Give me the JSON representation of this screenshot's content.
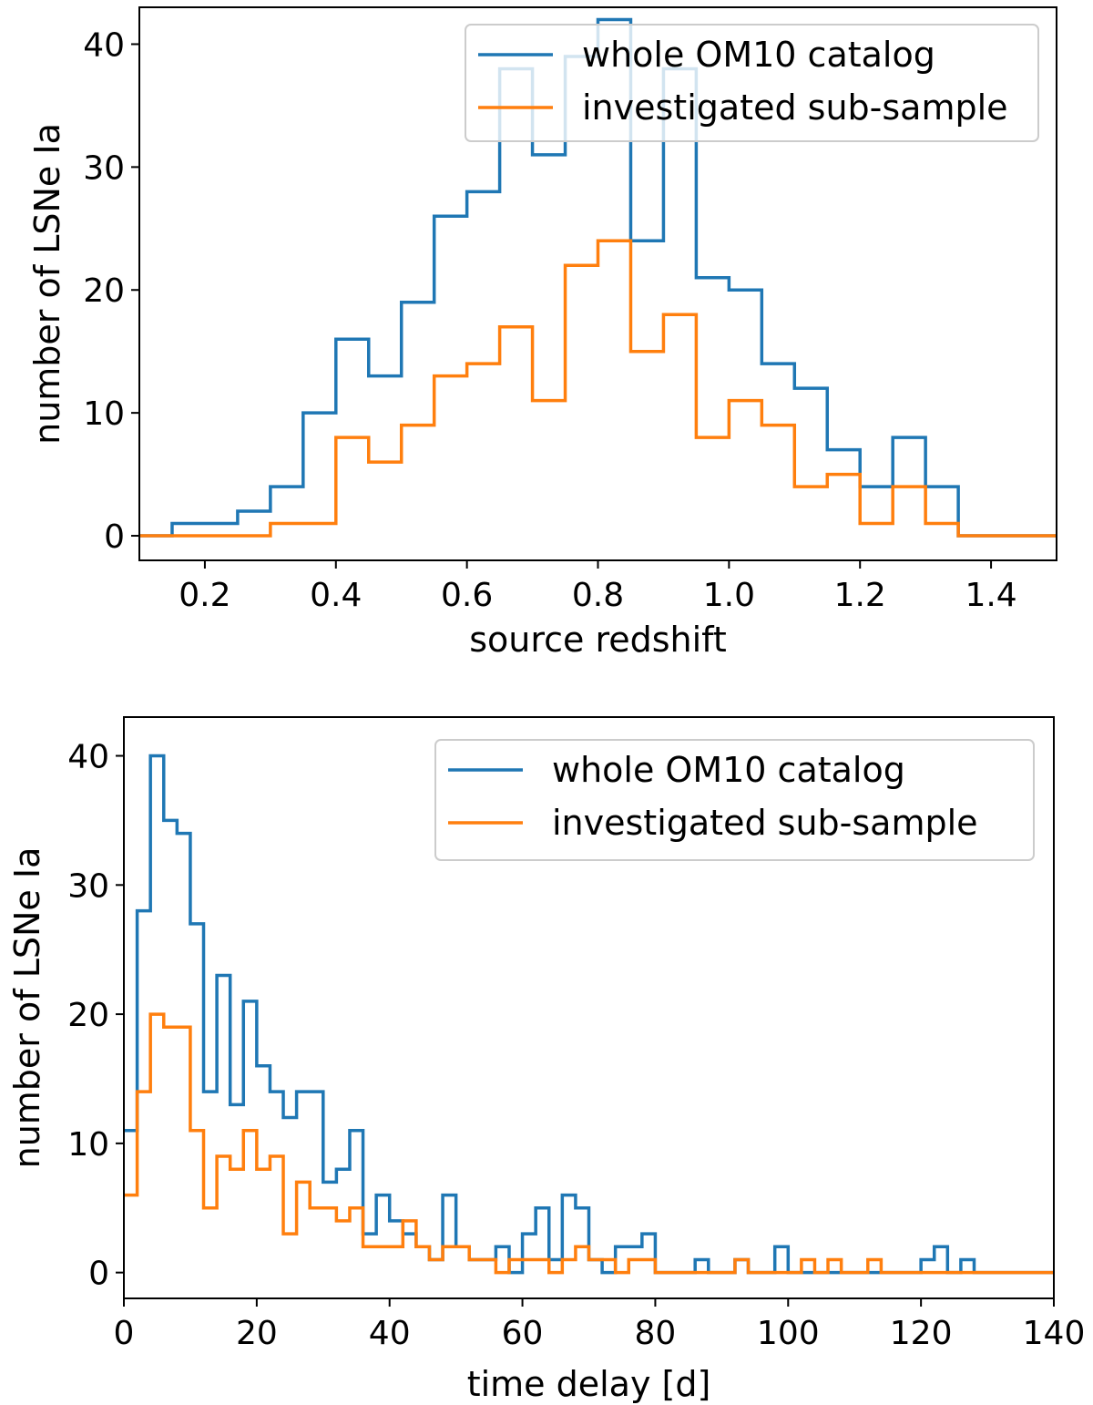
{
  "chart_data": [
    {
      "type": "line",
      "drawstyle": "steps",
      "xlabel": "source redshift",
      "ylabel": "number of LSNe Ia",
      "xlim": [
        0.1,
        1.5
      ],
      "ylim": [
        -2,
        43
      ],
      "xticks": [
        0.2,
        0.4,
        0.6,
        0.8,
        1.0,
        1.2,
        1.4
      ],
      "xtick_labels": [
        "0.2",
        "0.4",
        "0.6",
        "0.8",
        "1.0",
        "1.2",
        "1.4"
      ],
      "yticks": [
        0,
        10,
        20,
        30,
        40
      ],
      "ytick_labels": [
        "0",
        "10",
        "20",
        "30",
        "40"
      ],
      "legend_position": "upper-right",
      "series": [
        {
          "name": "whole OM10 catalog",
          "color": "#1f77b4",
          "edges": [
            0.1,
            0.15,
            0.2,
            0.25,
            0.3,
            0.35,
            0.4,
            0.45,
            0.5,
            0.55,
            0.6,
            0.65,
            0.7,
            0.75,
            0.8,
            0.85,
            0.9,
            0.95,
            1.0,
            1.05,
            1.1,
            1.15,
            1.2,
            1.25,
            1.3,
            1.35,
            1.4,
            1.45,
            1.5
          ],
          "values": [
            0,
            1,
            1,
            2,
            4,
            10,
            16,
            13,
            19,
            26,
            28,
            38,
            31,
            39,
            42,
            24,
            38,
            21,
            20,
            14,
            12,
            7,
            4,
            8,
            4,
            0,
            0,
            0
          ]
        },
        {
          "name": "investigated sub-sample",
          "color": "#ff7f0e",
          "edges": [
            0.1,
            0.15,
            0.2,
            0.25,
            0.3,
            0.35,
            0.4,
            0.45,
            0.5,
            0.55,
            0.6,
            0.65,
            0.7,
            0.75,
            0.8,
            0.85,
            0.9,
            0.95,
            1.0,
            1.05,
            1.1,
            1.15,
            1.2,
            1.25,
            1.3,
            1.35,
            1.4,
            1.45,
            1.5
          ],
          "values": [
            0,
            0,
            0,
            0,
            1,
            1,
            8,
            6,
            9,
            13,
            14,
            17,
            11,
            22,
            24,
            15,
            18,
            8,
            11,
            9,
            4,
            5,
            1,
            4,
            1,
            0,
            0,
            0
          ]
        }
      ]
    },
    {
      "type": "line",
      "drawstyle": "steps",
      "xlabel": "time delay [d]",
      "ylabel": "number of LSNe Ia",
      "xlim": [
        0,
        140
      ],
      "ylim": [
        -2,
        43
      ],
      "xticks": [
        0,
        20,
        40,
        60,
        80,
        100,
        120,
        140
      ],
      "xtick_labels": [
        "0",
        "20",
        "40",
        "60",
        "80",
        "100",
        "120",
        "140"
      ],
      "yticks": [
        0,
        10,
        20,
        30,
        40
      ],
      "ytick_labels": [
        "0",
        "10",
        "20",
        "30",
        "40"
      ],
      "legend_position": "upper-right",
      "series": [
        {
          "name": "whole OM10 catalog",
          "color": "#1f77b4",
          "x0": 0,
          "bin_width": 2,
          "values": [
            11,
            28,
            40,
            35,
            34,
            27,
            14,
            23,
            13,
            21,
            16,
            14,
            12,
            14,
            14,
            7,
            8,
            11,
            3,
            6,
            4,
            3,
            2,
            1,
            6,
            2,
            1,
            1,
            2,
            0,
            3,
            5,
            1,
            6,
            5,
            1,
            0,
            2,
            2,
            3,
            0,
            0,
            0,
            1,
            0,
            0,
            1,
            0,
            0,
            2,
            0,
            0,
            0,
            0,
            0,
            0,
            0,
            0,
            0,
            0,
            1,
            2,
            0,
            1,
            0,
            0,
            0,
            0,
            0,
            0
          ]
        },
        {
          "name": "investigated sub-sample",
          "color": "#ff7f0e",
          "x0": 0,
          "bin_width": 2,
          "values": [
            6,
            14,
            20,
            19,
            19,
            11,
            5,
            9,
            8,
            11,
            8,
            9,
            3,
            7,
            5,
            5,
            4,
            5,
            2,
            2,
            2,
            4,
            2,
            1,
            2,
            2,
            1,
            1,
            0,
            1,
            1,
            1,
            0,
            1,
            2,
            1,
            1,
            0,
            1,
            1,
            0,
            0,
            0,
            0,
            0,
            0,
            1,
            0,
            0,
            0,
            0,
            1,
            0,
            1,
            0,
            0,
            1,
            0,
            0,
            0,
            0,
            0,
            0,
            0,
            0,
            0,
            0,
            0,
            0,
            0
          ]
        }
      ]
    }
  ]
}
